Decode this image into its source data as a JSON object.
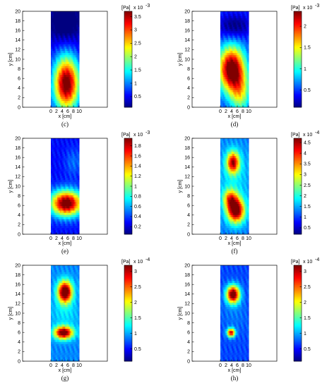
{
  "chart_data": [
    {
      "panel": "(c)",
      "type": "heatmap",
      "xlabel": "x [cm]",
      "ylabel": "y [cm]",
      "xticks": [
        "0",
        "2",
        "4",
        "6",
        "8",
        "10"
      ],
      "yticks": [
        "0",
        "2",
        "4",
        "6",
        "8",
        "10",
        "12",
        "14",
        "16",
        "18",
        "20"
      ],
      "xlim": [
        -10,
        20
      ],
      "ylim": [
        0,
        20
      ],
      "data_x_range": [
        0,
        10
      ],
      "colorbar": {
        "unit": "[Pa]",
        "exponent": "x 10",
        "power": "-3",
        "ticks": [
          "0.5",
          "1",
          "1.5",
          "2",
          "2.5",
          "3",
          "3.5"
        ],
        "range": [
          0.1,
          3.7
        ]
      },
      "hotspots": [
        {
          "x": 5.5,
          "y": 5,
          "sx": 4.5,
          "sy": 5.5,
          "v": 3.6
        }
      ],
      "background": [
        {
          "x": 5,
          "y": 18,
          "sx": 6,
          "sy": 4,
          "v": -0.5
        }
      ],
      "base": 0.45
    },
    {
      "panel": "(d)",
      "type": "heatmap",
      "xlabel": "x [cm]",
      "ylabel": "y [cm]",
      "xticks": [
        "0",
        "2",
        "4",
        "6",
        "8",
        "10"
      ],
      "yticks": [
        "0",
        "2",
        "4",
        "6",
        "8",
        "10",
        "12",
        "14",
        "16",
        "18",
        "20"
      ],
      "xlim": [
        -10,
        20
      ],
      "ylim": [
        0,
        20
      ],
      "data_x_range": [
        0,
        10
      ],
      "colorbar": {
        "unit": "[Pa]",
        "exponent": "x 10",
        "power": "-3",
        "ticks": [
          "0.5",
          "1",
          "1.5",
          "2"
        ],
        "range": [
          0.1,
          2.35
        ]
      },
      "hotspots": [
        {
          "x": 4,
          "y": 8,
          "sx": 4.5,
          "sy": 4.5,
          "v": 2.25
        },
        {
          "x": 7,
          "y": 3,
          "sx": 3.5,
          "sy": 4,
          "v": 1.0
        }
      ],
      "background": [
        {
          "x": 5,
          "y": 17,
          "sx": 6,
          "sy": 2.5,
          "v": -0.25
        }
      ],
      "base": 0.5
    },
    {
      "panel": "(e)",
      "type": "heatmap",
      "xlabel": "x [cm]",
      "ylabel": "y [cm]",
      "xticks": [
        "0",
        "2",
        "4",
        "6",
        "8",
        "10"
      ],
      "yticks": [
        "0",
        "2",
        "4",
        "6",
        "8",
        "10",
        "12",
        "14",
        "16",
        "18",
        "20"
      ],
      "xlim": [
        -10,
        20
      ],
      "ylim": [
        0,
        20
      ],
      "data_x_range": [
        0,
        10
      ],
      "colorbar": {
        "unit": "[Pa]",
        "exponent": "x 10",
        "power": "-3",
        "ticks": [
          "0.2",
          "0.4",
          "0.6",
          "0.8",
          "1",
          "1.2",
          "1.4",
          "1.6",
          "1.8"
        ],
        "range": [
          0.05,
          1.95
        ]
      },
      "hotspots": [
        {
          "x": 5.5,
          "y": 6.5,
          "sx": 5.5,
          "sy": 2.6,
          "v": 1.9
        }
      ],
      "background": [
        {
          "x": 8,
          "y": 15,
          "sx": 3,
          "sy": 3,
          "v": 0.3
        }
      ],
      "base": 0.3
    },
    {
      "panel": "(f)",
      "type": "heatmap",
      "xlabel": "x [cm]",
      "ylabel": "y [cm]",
      "xticks": [
        "0",
        "2",
        "4",
        "6",
        "8",
        "10"
      ],
      "yticks": [
        "0",
        "2",
        "4",
        "6",
        "8",
        "10",
        "12",
        "14",
        "16",
        "18",
        "20"
      ],
      "xlim": [
        -10,
        20
      ],
      "ylim": [
        0,
        20
      ],
      "data_x_range": [
        0,
        10
      ],
      "colorbar": {
        "unit": "[Pa]",
        "exponent": "x 10",
        "power": "-4",
        "ticks": [
          "0.5",
          "1",
          "1.5",
          "2",
          "2.5",
          "3",
          "3.5",
          "4",
          "4.5"
        ],
        "range": [
          0.2,
          4.7
        ]
      },
      "hotspots": [
        {
          "x": 4.5,
          "y": 15,
          "sx": 2.2,
          "sy": 2.2,
          "v": 3.5
        },
        {
          "x": 5.5,
          "y": 5,
          "sx": 3,
          "sy": 2.5,
          "v": 4.2
        },
        {
          "x": 3.5,
          "y": 7.5,
          "sx": 2.5,
          "sy": 2,
          "v": 2.5
        }
      ],
      "background": [
        {
          "x": 5,
          "y": 12,
          "sx": 6,
          "sy": 6,
          "v": 0.9
        }
      ],
      "base": 1.3
    },
    {
      "panel": "(g)",
      "type": "heatmap",
      "xlabel": "x [cm]",
      "ylabel": "y [cm]",
      "xticks": [
        "0",
        "2",
        "4",
        "6",
        "8",
        "10"
      ],
      "yticks": [
        "0",
        "2",
        "4",
        "6",
        "8",
        "10",
        "12",
        "14",
        "16",
        "18",
        "20"
      ],
      "xlim": [
        -10,
        20
      ],
      "ylim": [
        0,
        20
      ],
      "data_x_range": [
        0,
        10
      ],
      "colorbar": {
        "unit": "[Pa]",
        "exponent": "x 10",
        "power": "-4",
        "ticks": [
          "0.5",
          "1",
          "1.5",
          "2",
          "2.5",
          "3"
        ],
        "range": [
          0.1,
          3.2
        ]
      },
      "hotspots": [
        {
          "x": 5,
          "y": 14.5,
          "sx": 2.5,
          "sy": 2.2,
          "v": 3.1
        },
        {
          "x": 4.5,
          "y": 6,
          "sx": 3.2,
          "sy": 1.3,
          "v": 2.9
        }
      ],
      "background": [
        {
          "x": 5,
          "y": 10,
          "sx": 5,
          "sy": 3,
          "v": 0.6
        }
      ],
      "base": 0.9
    },
    {
      "panel": "(h)",
      "type": "heatmap",
      "xlabel": "x [cm]",
      "ylabel": "y [cm]",
      "xticks": [
        "0",
        "2",
        "4",
        "6",
        "8",
        "10"
      ],
      "yticks": [
        "0",
        "2",
        "4",
        "6",
        "8",
        "10",
        "12",
        "14",
        "16",
        "18",
        "20"
      ],
      "xlim": [
        -10,
        20
      ],
      "ylim": [
        0,
        20
      ],
      "data_x_range": [
        0,
        10
      ],
      "colorbar": {
        "unit": "[Pa]",
        "exponent": "x 10",
        "power": "-4",
        "ticks": [
          "0.5",
          "1",
          "1.5",
          "2",
          "2.5",
          "3"
        ],
        "range": [
          0.1,
          3.2
        ]
      },
      "hotspots": [
        {
          "x": 4.5,
          "y": 14,
          "sx": 2.3,
          "sy": 1.8,
          "v": 3.0
        },
        {
          "x": 3.8,
          "y": 6,
          "sx": 1.4,
          "sy": 0.9,
          "v": 2.5
        }
      ],
      "background": [
        {
          "x": 5,
          "y": 10,
          "sx": 5,
          "sy": 4,
          "v": 0.4
        }
      ],
      "base": 0.7
    }
  ]
}
